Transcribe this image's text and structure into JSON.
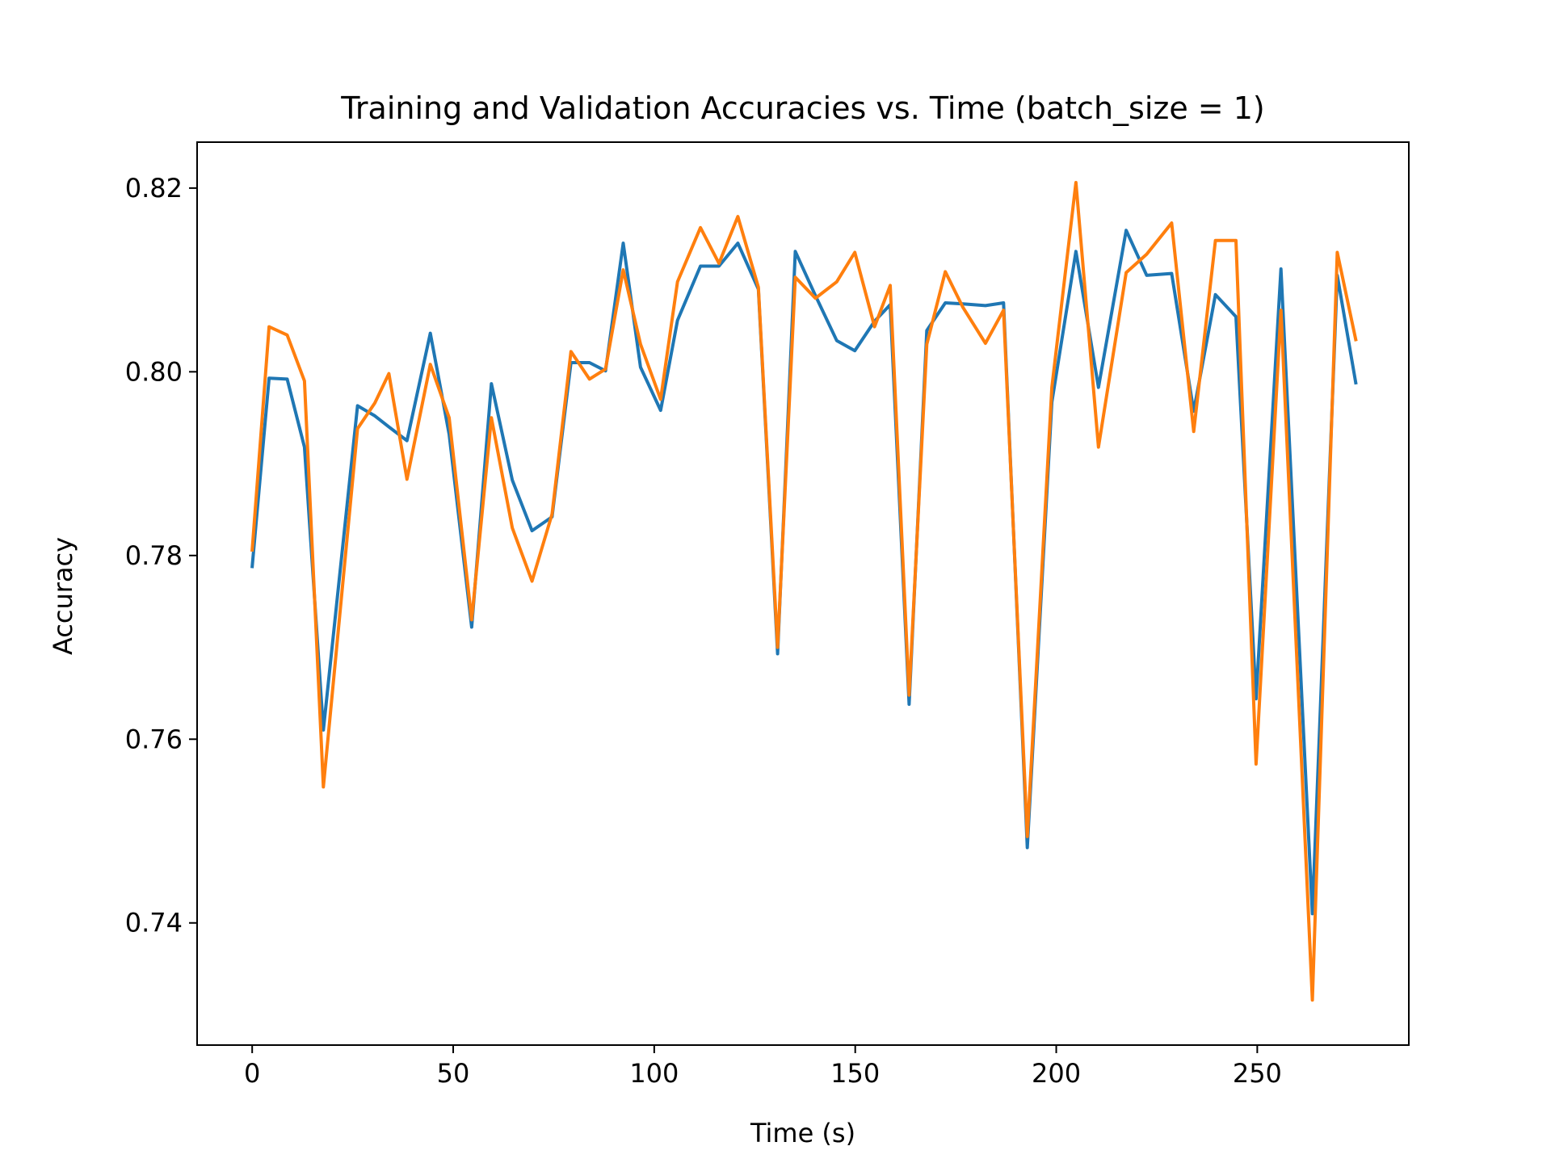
{
  "chart_data": {
    "type": "line",
    "title": "Training and Validation Accuracies vs. Time (batch_size = 1)",
    "xlabel": "Time (s)",
    "ylabel": "Accuracy",
    "xlim": [
      -13.7,
      287.7
    ],
    "ylim": [
      0.7267,
      0.825
    ],
    "x_ticks": [
      0,
      50,
      100,
      150,
      200,
      250
    ],
    "x_tick_labels": [
      "0",
      "50",
      "100",
      "150",
      "200",
      "250"
    ],
    "y_ticks": [
      0.74,
      0.76,
      0.78,
      0.8,
      0.82
    ],
    "y_tick_labels": [
      "0.74",
      "0.76",
      "0.78",
      "0.80",
      "0.82"
    ],
    "grid": false,
    "legend": null,
    "x": [
      0,
      4.2,
      8.7,
      13.0,
      17.7,
      26.2,
      30.5,
      34.0,
      38.5,
      44.3,
      49.0,
      54.6,
      59.5,
      64.7,
      69.6,
      74.6,
      79.3,
      83.9,
      87.9,
      92.3,
      96.6,
      101.6,
      105.8,
      111.5,
      116.1,
      120.8,
      125.9,
      130.7,
      135.1,
      140.1,
      145.4,
      149.9,
      154.8,
      158.7,
      163.4,
      167.8,
      172.4,
      176.8,
      182.4,
      186.9,
      192.8,
      198.9,
      204.9,
      210.5,
      217.4,
      222.5,
      228.7,
      234.2,
      239.6,
      244.7,
      249.7,
      255.9,
      263.7,
      269.9,
      274.5
    ],
    "series": [
      {
        "color": "#1f77b4",
        "values": [
          0.7788,
          0.7993,
          0.7992,
          0.7918,
          0.761,
          0.7963,
          0.7952,
          0.794,
          0.7925,
          0.8042,
          0.7932,
          0.7722,
          0.7987,
          0.7882,
          0.7827,
          0.7842,
          0.801,
          0.801,
          0.8001,
          0.814,
          0.8005,
          0.7958,
          0.8056,
          0.8115,
          0.8115,
          0.814,
          0.809,
          0.7693,
          0.8131,
          0.8083,
          0.8034,
          0.8023,
          0.8055,
          0.8073,
          0.7638,
          0.8045,
          0.8075,
          0.8074,
          0.8072,
          0.8075,
          0.7482,
          0.7967,
          0.8131,
          0.7983,
          0.8154,
          0.8105,
          0.8107,
          0.7957,
          0.8084,
          0.806,
          0.7644,
          0.8112,
          0.741,
          0.8105,
          0.7988
        ]
      },
      {
        "color": "#ff7f0e",
        "values": [
          0.7806,
          0.8049,
          0.804,
          0.799,
          0.7548,
          0.7938,
          0.7966,
          0.7998,
          0.7883,
          0.8008,
          0.795,
          0.773,
          0.795,
          0.783,
          0.7772,
          0.7845,
          0.8022,
          0.7992,
          0.8003,
          0.8111,
          0.803,
          0.797,
          0.8098,
          0.8157,
          0.8118,
          0.8169,
          0.8092,
          0.77,
          0.8103,
          0.808,
          0.8098,
          0.813,
          0.8049,
          0.8094,
          0.7648,
          0.803,
          0.8109,
          0.807,
          0.8031,
          0.8067,
          0.7494,
          0.7983,
          0.8206,
          0.7918,
          0.8108,
          0.8128,
          0.8162,
          0.7935,
          0.8143,
          0.8143,
          0.7573,
          0.8067,
          0.7316,
          0.813,
          0.8035
        ]
      }
    ]
  }
}
